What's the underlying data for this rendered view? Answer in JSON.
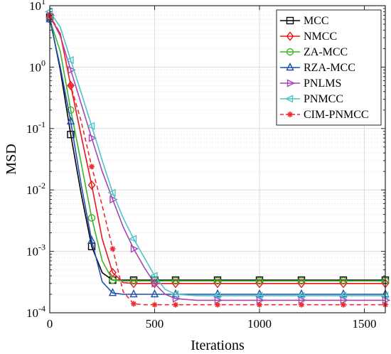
{
  "chart_data": {
    "type": "line",
    "title": "",
    "xlabel": "Iterations",
    "ylabel": "MSD",
    "xlim": [
      0,
      1600
    ],
    "ylim": [
      0.0001,
      10
    ],
    "yscale": "log",
    "grid": true,
    "legend_position": "top-right",
    "x_ticks": [
      "0",
      "500",
      "1000",
      "1500"
    ],
    "y_ticks": [
      {
        "base": "10",
        "exp": "1"
      },
      {
        "base": "10",
        "exp": "0"
      },
      {
        "base": "10",
        "exp": "-1"
      },
      {
        "base": "10",
        "exp": "-2"
      },
      {
        "base": "10",
        "exp": "-3"
      },
      {
        "base": "10",
        "exp": "-4"
      }
    ],
    "series": [
      {
        "name": "MCC",
        "color": "#000000",
        "marker": "square",
        "dashed": false,
        "x": [
          0,
          50,
          100,
          150,
          200,
          250,
          300,
          350,
          400,
          450,
          500,
          550,
          600,
          700,
          800,
          900,
          1000,
          1100,
          1200,
          1300,
          1400,
          1500,
          1600
        ],
        "y": [
          6.5,
          0.9,
          0.08,
          0.0085,
          0.0012,
          0.00045,
          0.00034,
          0.00034,
          0.00034,
          0.00034,
          0.00034,
          0.00034,
          0.00034,
          0.00034,
          0.00034,
          0.00034,
          0.00034,
          0.00034,
          0.00034,
          0.00034,
          0.00034,
          0.00034,
          0.00034
        ]
      },
      {
        "name": "NMCC",
        "color": "#e8161b",
        "marker": "diamond",
        "dashed": false,
        "x": [
          0,
          50,
          100,
          150,
          200,
          250,
          300,
          350,
          400,
          450,
          500,
          550,
          600,
          700,
          800,
          900,
          1000,
          1100,
          1200,
          1300,
          1400,
          1500,
          1600
        ],
        "y": [
          6.5,
          3.5,
          0.5,
          0.075,
          0.012,
          0.0016,
          0.00045,
          0.00031,
          0.0003,
          0.0003,
          0.0003,
          0.0003,
          0.0003,
          0.0003,
          0.0003,
          0.0003,
          0.0003,
          0.0003,
          0.0003,
          0.0003,
          0.0003,
          0.0003,
          0.0003
        ]
      },
      {
        "name": "ZA-MCC",
        "color": "#44b12b",
        "marker": "circle",
        "dashed": false,
        "x": [
          0,
          50,
          100,
          150,
          200,
          250,
          300,
          350,
          400,
          450,
          500,
          550,
          600,
          700,
          800,
          900,
          1000,
          1100,
          1200,
          1300,
          1400,
          1500,
          1600
        ],
        "y": [
          6.0,
          1.8,
          0.2,
          0.027,
          0.0035,
          0.0007,
          0.00034,
          0.00033,
          0.00033,
          0.00033,
          0.00033,
          0.00033,
          0.00033,
          0.00033,
          0.00033,
          0.00033,
          0.00033,
          0.00033,
          0.00033,
          0.00033,
          0.00033,
          0.00033,
          0.00033
        ]
      },
      {
        "name": "RZA-MCC",
        "color": "#1f4fae",
        "marker": "triangle-up",
        "dashed": false,
        "x": [
          0,
          50,
          100,
          150,
          200,
          250,
          300,
          350,
          400,
          450,
          500,
          550,
          600,
          700,
          800,
          900,
          1000,
          1100,
          1200,
          1300,
          1400,
          1500,
          1600
        ],
        "y": [
          6.0,
          1.0,
          0.13,
          0.012,
          0.0015,
          0.00032,
          0.00021,
          0.0002,
          0.0002,
          0.0002,
          0.0002,
          0.0002,
          0.0002,
          0.0002,
          0.0002,
          0.0002,
          0.0002,
          0.0002,
          0.0002,
          0.0002,
          0.0002,
          0.0002,
          0.0002
        ]
      },
      {
        "name": "PNLMS",
        "color": "#a444b5",
        "marker": "triangle-right",
        "dashed": false,
        "x": [
          0,
          50,
          100,
          150,
          200,
          250,
          300,
          350,
          400,
          450,
          500,
          550,
          600,
          700,
          800,
          900,
          1000,
          1100,
          1200,
          1300,
          1400,
          1500,
          1600
        ],
        "y": [
          7.0,
          3.2,
          0.9,
          0.25,
          0.07,
          0.02,
          0.007,
          0.0025,
          0.0011,
          0.00055,
          0.0003,
          0.0002,
          0.00017,
          0.00016,
          0.00016,
          0.00016,
          0.00016,
          0.00016,
          0.00016,
          0.00016,
          0.00016,
          0.00016,
          0.00016
        ]
      },
      {
        "name": "PNMCC",
        "color": "#4fc3c6",
        "marker": "triangle-left",
        "dashed": false,
        "x": [
          0,
          50,
          100,
          150,
          200,
          250,
          300,
          350,
          400,
          450,
          500,
          550,
          600,
          700,
          800,
          900,
          1000,
          1100,
          1200,
          1300,
          1400,
          1500,
          1600
        ],
        "y": [
          8.0,
          4.5,
          1.3,
          0.38,
          0.11,
          0.03,
          0.009,
          0.0035,
          0.0016,
          0.0008,
          0.0004,
          0.00024,
          0.0002,
          0.00019,
          0.00019,
          0.00019,
          0.00019,
          0.00019,
          0.00019,
          0.00019,
          0.00019,
          0.00019,
          0.00019
        ]
      },
      {
        "name": "CIM-PNMCC",
        "color": "#ef2a30",
        "marker": "asterisk",
        "dashed": true,
        "x": [
          0,
          50,
          100,
          150,
          200,
          250,
          300,
          350,
          400,
          450,
          500,
          550,
          600,
          700,
          800,
          900,
          1000,
          1100,
          1200,
          1300,
          1400,
          1500,
          1600
        ],
        "y": [
          7.0,
          3.5,
          0.5,
          0.13,
          0.024,
          0.0055,
          0.0011,
          0.00022,
          0.00014,
          0.000135,
          0.000135,
          0.000135,
          0.000135,
          0.000135,
          0.000135,
          0.000135,
          0.000135,
          0.000135,
          0.000135,
          0.000135,
          0.000135,
          0.000135,
          0.000135
        ]
      }
    ]
  }
}
